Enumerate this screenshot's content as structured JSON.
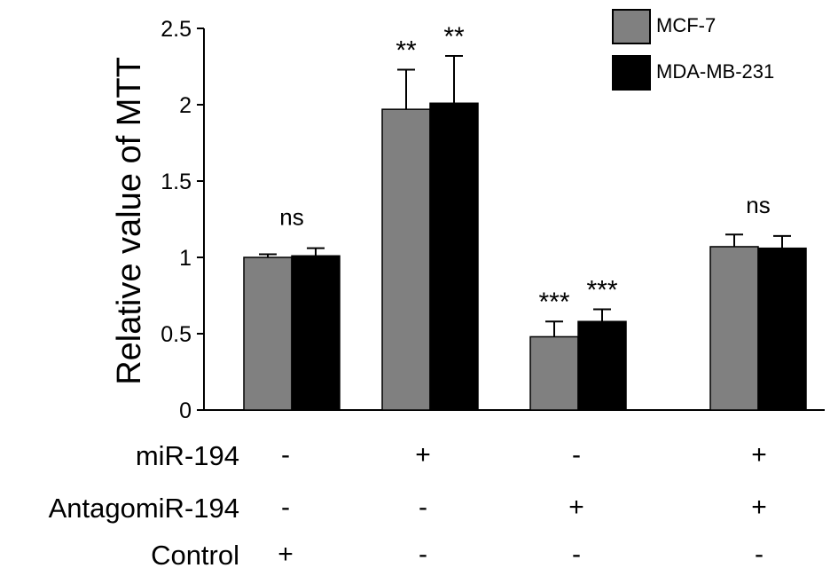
{
  "chart_data": {
    "type": "bar",
    "ylabel": "Relative value of MTT",
    "ylim": [
      0,
      2.5
    ],
    "yticks": [
      "0",
      "0.5",
      "1",
      "1.5",
      "2",
      "2.5"
    ],
    "grid": false,
    "legend_position": "top-right",
    "series": [
      {
        "name": "MCF-7",
        "color": "#808080",
        "values": [
          1.0,
          1.97,
          0.48,
          1.07
        ],
        "errors": [
          0.02,
          0.26,
          0.1,
          0.08
        ],
        "annotations": [
          "",
          "**",
          "***",
          ""
        ]
      },
      {
        "name": "MDA-MB-231",
        "color": "#000000",
        "values": [
          1.01,
          2.01,
          0.58,
          1.06
        ],
        "errors": [
          0.05,
          0.31,
          0.08,
          0.08
        ],
        "annotations": [
          "ns",
          "**",
          "***",
          "ns"
        ]
      }
    ]
  },
  "treatment_table": {
    "rows": [
      {
        "label": "miR-194",
        "signs": [
          "-",
          "+",
          "-",
          "+"
        ]
      },
      {
        "label": "AntagomiR-194",
        "signs": [
          "-",
          "-",
          "+",
          "+"
        ]
      },
      {
        "label": "Control",
        "signs": [
          "+",
          "-",
          "-",
          "-"
        ]
      }
    ]
  }
}
